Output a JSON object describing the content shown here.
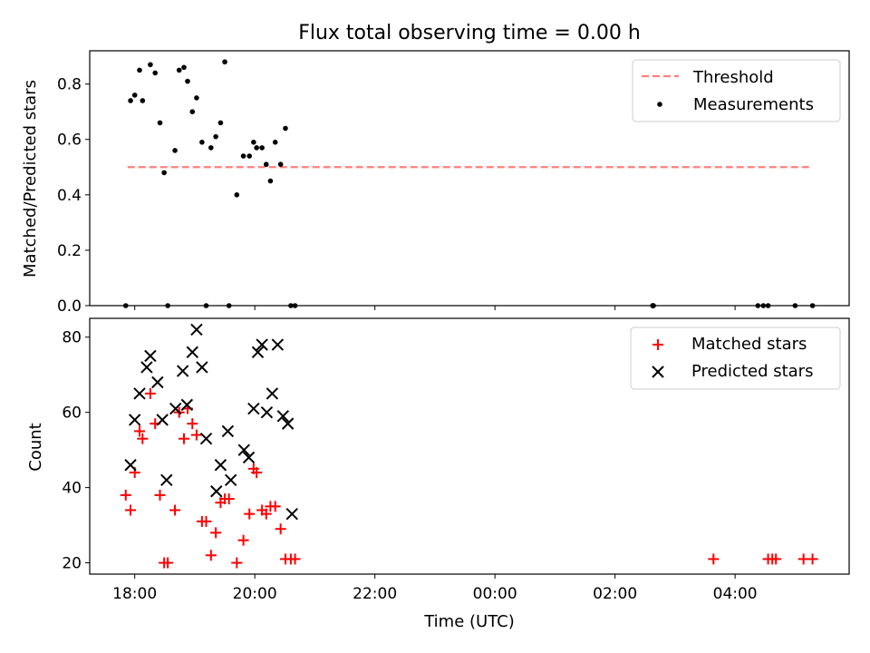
{
  "title": "Flux total observing time = 0.00 h",
  "chart_data": [
    {
      "type": "scatter",
      "panel": "top",
      "title": "Flux total observing time = 0.00 h",
      "xlabel": "",
      "ylabel": "Matched/Predicted stars",
      "xlim": [
        -0.75,
        11.9
      ],
      "ylim": [
        0,
        0.92
      ],
      "yticks": [
        0.0,
        0.2,
        0.4,
        0.6,
        0.8
      ],
      "ytick_labels": [
        "0.0",
        "0.2",
        "0.4",
        "0.6",
        "0.8"
      ],
      "legend_position": "top-right",
      "series": [
        {
          "name": "Threshold",
          "kind": "dashed-line",
          "color": "#ff7f7f",
          "x": [
            -0.12,
            11.25
          ],
          "y": [
            0.5,
            0.5
          ]
        },
        {
          "name": "Measurements",
          "kind": "dot",
          "color": "#000000",
          "x": [
            -0.15,
            -0.07,
            0.0,
            0.08,
            0.13,
            0.26,
            0.34,
            0.42,
            0.49,
            0.55,
            0.67,
            0.74,
            0.82,
            0.88,
            0.96,
            1.03,
            1.12,
            1.19,
            1.27,
            1.35,
            1.43,
            1.5,
            1.57,
            1.7,
            1.81,
            1.91,
            1.98,
            2.03,
            2.12,
            2.19,
            2.26,
            2.34,
            2.43,
            2.51,
            2.6,
            2.67,
            8.63,
            8.63,
            8.63,
            8.63,
            8.64,
            10.38,
            10.47,
            10.55,
            11.0,
            11.29
          ],
          "y": [
            0.0,
            0.74,
            0.76,
            0.85,
            0.74,
            0.87,
            0.84,
            0.66,
            0.48,
            0.0,
            0.56,
            0.85,
            0.86,
            0.81,
            0.7,
            0.75,
            0.59,
            0.0,
            0.57,
            0.61,
            0.66,
            0.88,
            0.0,
            0.4,
            0.54,
            0.54,
            0.59,
            0.57,
            0.57,
            0.51,
            0.45,
            0.59,
            0.51,
            0.64,
            0.0,
            0.0,
            0.0,
            0.0,
            0.0,
            0.0,
            0.0,
            0.0,
            0.0,
            0.0,
            0.0,
            0.0
          ]
        }
      ]
    },
    {
      "type": "scatter",
      "panel": "bottom",
      "xlabel": "Time (UTC)",
      "ylabel": "Count",
      "xlim": [
        -0.75,
        11.9
      ],
      "ylim": [
        17,
        85
      ],
      "yticks": [
        20,
        40,
        60,
        80
      ],
      "ytick_labels": [
        "20",
        "40",
        "60",
        "80"
      ],
      "xticks": [
        0,
        2,
        4,
        6,
        8,
        10
      ],
      "xtick_labels": [
        "18:00",
        "20:00",
        "22:00",
        "00:00",
        "02:00",
        "04:00"
      ],
      "legend_position": "top-right",
      "series": [
        {
          "name": "Matched stars",
          "marker": "plus",
          "color": "#ff0000",
          "x": [
            -0.15,
            -0.07,
            0.0,
            0.08,
            0.13,
            0.26,
            0.34,
            0.42,
            0.49,
            0.55,
            0.67,
            0.74,
            0.82,
            0.88,
            0.96,
            1.03,
            1.12,
            1.19,
            1.27,
            1.35,
            1.43,
            1.5,
            1.57,
            1.7,
            1.81,
            1.91,
            1.98,
            2.03,
            2.12,
            2.19,
            2.26,
            2.34,
            2.43,
            2.51,
            2.6,
            2.67,
            9.64,
            10.55,
            10.62,
            10.68,
            11.14,
            11.29
          ],
          "y": [
            38,
            34,
            44,
            55,
            53,
            65,
            57,
            38,
            20,
            20,
            34,
            60,
            53,
            61,
            57,
            54,
            31,
            31,
            22,
            28,
            36,
            37,
            37,
            20,
            26,
            33,
            45,
            44,
            34,
            33,
            35,
            35,
            29,
            21,
            21,
            21,
            21,
            21,
            21,
            21,
            21,
            21
          ]
        },
        {
          "name": "Predicted stars",
          "marker": "x",
          "color": "#000000",
          "x": [
            -0.07,
            0.0,
            0.08,
            0.2,
            0.26,
            0.38,
            0.46,
            0.53,
            0.68,
            0.8,
            0.87,
            0.96,
            1.03,
            1.12,
            1.19,
            1.36,
            1.43,
            1.55,
            1.6,
            1.82,
            1.9,
            1.98,
            2.05,
            2.12,
            2.2,
            2.29,
            2.38,
            2.47,
            2.55,
            2.62
          ],
          "y": [
            46,
            58,
            65,
            72,
            75,
            68,
            58,
            42,
            61,
            71,
            62,
            76,
            82,
            72,
            53,
            39,
            46,
            55,
            42,
            50,
            48,
            61,
            76,
            78,
            60,
            65,
            78,
            59,
            57,
            33
          ]
        }
      ]
    }
  ]
}
